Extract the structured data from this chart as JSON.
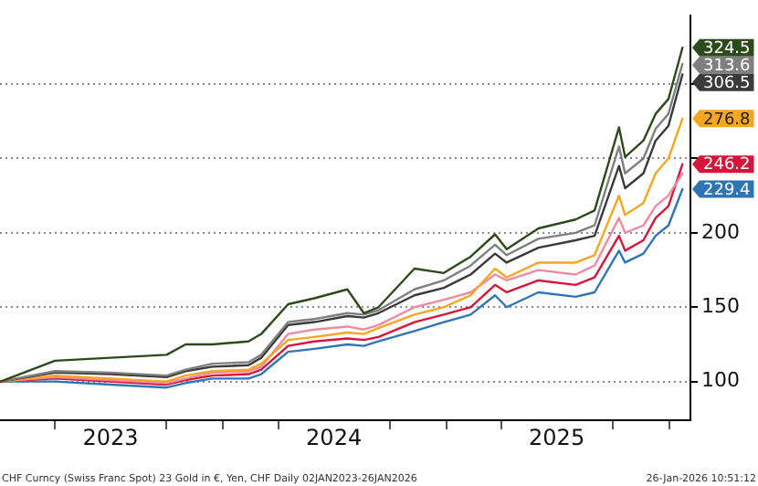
{
  "chart_data": {
    "type": "line",
    "x": [
      "2023-01-02",
      "2023-04-01",
      "2023-07-01",
      "2023-10-01",
      "2023-11-01",
      "2023-12-15",
      "2024-02-12",
      "2024-03-04",
      "2024-04-17",
      "2024-05-30",
      "2024-07-23",
      "2024-08-19",
      "2024-09-12",
      "2024-11-10",
      "2024-12-28",
      "2025-02-10",
      "2025-03-22",
      "2025-04-10",
      "2025-06-01",
      "2025-08-01",
      "2025-09-01",
      "2025-10-11",
      "2025-10-21",
      "2025-11-20",
      "2025-12-10",
      "2025-12-31",
      "2026-01-23"
    ],
    "series": [
      {
        "color": "#2e4a1c",
        "values": [
          100,
          114,
          116,
          118,
          125,
          125,
          127,
          132,
          152,
          156,
          162,
          146,
          150,
          176,
          173,
          184,
          199,
          189,
          203,
          209,
          215,
          271,
          251,
          262,
          280,
          290,
          324.5
        ],
        "value_labels": [
          null,
          null,
          null,
          null,
          null,
          null,
          null,
          null,
          null,
          null,
          null,
          null,
          null,
          null,
          null,
          null,
          null,
          null,
          null,
          null,
          null,
          null,
          null,
          null,
          null,
          null,
          "324.5"
        ]
      },
      {
        "color": "#7f7f7f",
        "values": [
          100,
          107,
          106,
          104,
          108,
          112,
          113,
          118,
          140,
          142,
          146,
          145,
          148,
          162,
          168,
          178,
          192,
          185,
          196,
          200,
          205,
          258,
          240,
          250,
          270,
          280,
          313.6
        ],
        "value_labels": [
          null,
          null,
          null,
          null,
          null,
          null,
          null,
          null,
          null,
          null,
          null,
          null,
          null,
          null,
          null,
          null,
          null,
          null,
          null,
          null,
          null,
          null,
          null,
          null,
          null,
          null,
          "313.6"
        ]
      },
      {
        "color": "#3a3a3a",
        "values": [
          100,
          106,
          105,
          103,
          107,
          110,
          111,
          116,
          138,
          140,
          144,
          143,
          146,
          158,
          163,
          172,
          186,
          180,
          190,
          195,
          198,
          245,
          230,
          240,
          262,
          272,
          306.5
        ],
        "value_labels": [
          null,
          null,
          null,
          null,
          null,
          null,
          null,
          null,
          null,
          null,
          null,
          null,
          null,
          null,
          null,
          null,
          null,
          null,
          null,
          null,
          null,
          null,
          null,
          null,
          null,
          null,
          "306.5"
        ]
      },
      {
        "color": "#f5a623",
        "values": [
          100,
          104,
          102,
          100,
          104,
          107,
          108,
          112,
          128,
          130,
          133,
          132,
          136,
          145,
          150,
          158,
          176,
          170,
          180,
          180,
          185,
          225,
          212,
          220,
          240,
          250,
          276.8
        ],
        "value_labels": [
          null,
          null,
          null,
          null,
          null,
          null,
          null,
          null,
          null,
          null,
          null,
          null,
          null,
          null,
          null,
          null,
          null,
          null,
          null,
          null,
          null,
          null,
          null,
          null,
          null,
          null,
          "276.8"
        ]
      },
      {
        "color": "#f08aa0",
        "values": [
          100,
          103,
          101,
          99,
          102,
          106,
          107,
          110,
          132,
          135,
          137,
          135,
          138,
          150,
          155,
          160,
          172,
          168,
          175,
          172,
          178,
          210,
          200,
          205,
          218,
          225,
          240
        ]
      },
      {
        "color": "#d7153a",
        "values": [
          100,
          102,
          100,
          98,
          101,
          104,
          105,
          108,
          124,
          127,
          129,
          128,
          130,
          140,
          145,
          150,
          165,
          160,
          168,
          165,
          170,
          198,
          188,
          195,
          210,
          218,
          246.2
        ],
        "value_labels": [
          null,
          null,
          null,
          null,
          null,
          null,
          null,
          null,
          null,
          null,
          null,
          null,
          null,
          null,
          null,
          null,
          null,
          null,
          null,
          null,
          null,
          null,
          null,
          null,
          null,
          null,
          "246.2"
        ]
      },
      {
        "color": "#2f75b5",
        "values": [
          100,
          100,
          98,
          96,
          99,
          102,
          102,
          105,
          120,
          122,
          125,
          124,
          127,
          134,
          140,
          145,
          158,
          150,
          160,
          157,
          160,
          188,
          180,
          186,
          198,
          205,
          229.4
        ],
        "value_labels": [
          null,
          null,
          null,
          null,
          null,
          null,
          null,
          null,
          null,
          null,
          null,
          null,
          null,
          null,
          null,
          null,
          null,
          null,
          null,
          null,
          null,
          null,
          null,
          null,
          null,
          null,
          "229.4"
        ]
      }
    ],
    "xlim": [
      "2023-01-01",
      "2026-02-05"
    ],
    "xticks": [
      {
        "value": "2023-04-01",
        "label": null
      },
      {
        "value": "2023-07-01",
        "label": "2023"
      },
      {
        "value": "2023-10-01",
        "label": null
      },
      {
        "value": "2024-01-01",
        "label": null
      },
      {
        "value": "2024-04-01",
        "label": null
      },
      {
        "value": "2024-07-01",
        "label": "2024"
      },
      {
        "value": "2024-10-01",
        "label": null
      },
      {
        "value": "2025-01-01",
        "label": null
      },
      {
        "value": "2025-04-01",
        "label": null
      },
      {
        "value": "2025-07-01",
        "label": "2025"
      },
      {
        "value": "2025-10-01",
        "label": null
      },
      {
        "value": "2026-01-01",
        "label": null
      }
    ],
    "ylim": [
      74,
      346
    ],
    "yticks": [
      100,
      150,
      200,
      {
        "value": 250,
        "label": null
      },
      {
        "value": 300,
        "label": null
      }
    ],
    "grid": "y",
    "legend": false,
    "marker": "none",
    "line_style": "solid",
    "annotations": [
      "CHF Curncy (Swiss Franc Spot) 23 Gold in €, Yen, CHF Daily 02JAN2023-26JAN2026",
      "26-Jan-2026 10:51:12"
    ]
  }
}
